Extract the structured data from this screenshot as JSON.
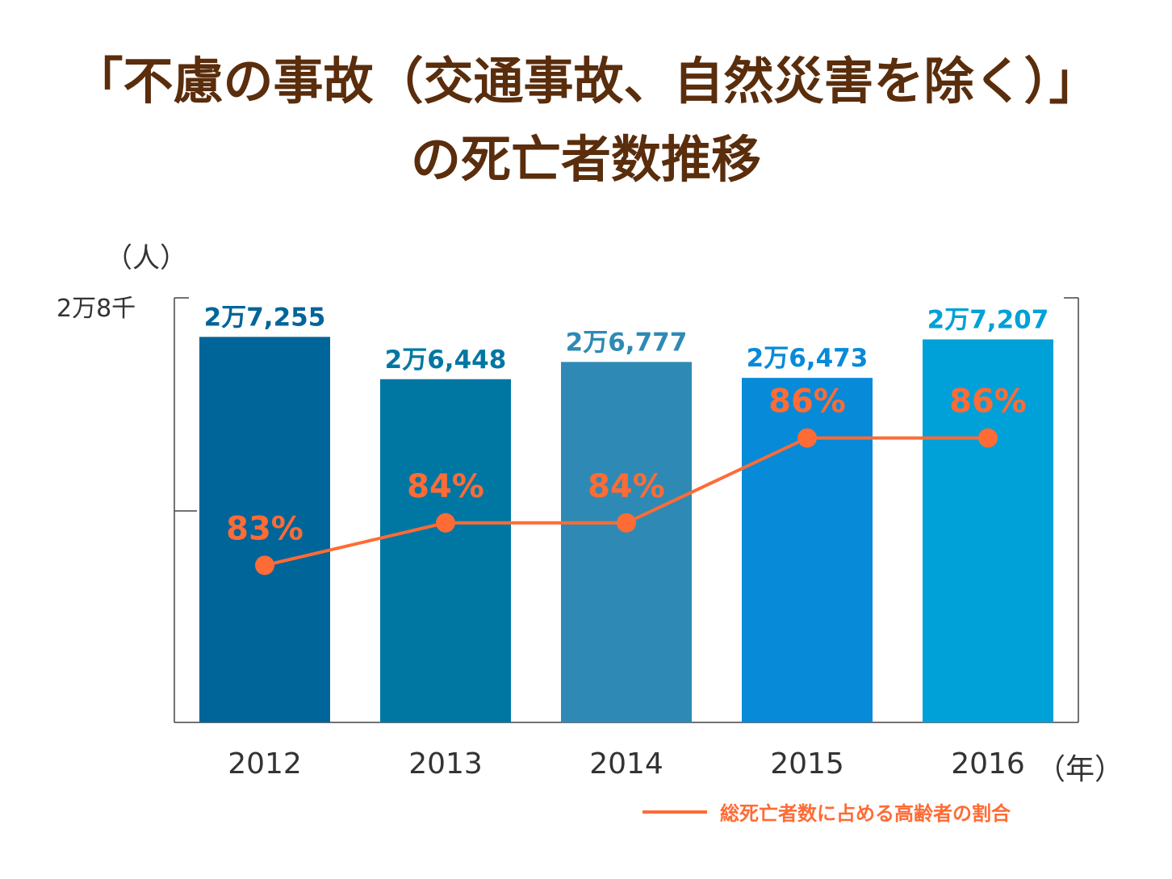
{
  "title": {
    "line1": "「不慮の事故（交通事故、自然災害を除く）」",
    "line2": "の死亡者数推移"
  },
  "axes": {
    "y_unit": "（人）",
    "y_top_label": "2万8千",
    "x_unit": "（年）"
  },
  "legend": {
    "line_label": "総死亡者数に占める高齢者の割合"
  },
  "colors": {
    "title": "#5a2d0c",
    "line": "#ff6b35",
    "bars": [
      "#006599",
      "#0077a3",
      "#2e8ab4",
      "#078ad8",
      "#00a0d8"
    ],
    "bar_labels": [
      "#006599",
      "#0077a3",
      "#2e8ab4",
      "#078ad8",
      "#00a0d8"
    ]
  },
  "chart_data": {
    "type": "bar",
    "categories": [
      "2012",
      "2013",
      "2014",
      "2015",
      "2016"
    ],
    "series": [
      {
        "values": [
          27255,
          26448,
          26777,
          26473,
          27207
        ],
        "labels": [
          "2万7,255",
          "2万6,448",
          "2万6,777",
          "2万6,473",
          "2万7,207"
        ]
      },
      {
        "name": "総死亡者数に占める高齢者の割合",
        "type": "line",
        "values": [
          83,
          84,
          84,
          86,
          86
        ],
        "labels": [
          "83%",
          "84%",
          "84%",
          "86%",
          "86%"
        ]
      }
    ],
    "ylabel": "（人）",
    "xlabel": "（年）",
    "ylim": [
      19900,
      28000
    ],
    "line_ylim": [
      79.3,
      89.3
    ],
    "grid": false
  }
}
